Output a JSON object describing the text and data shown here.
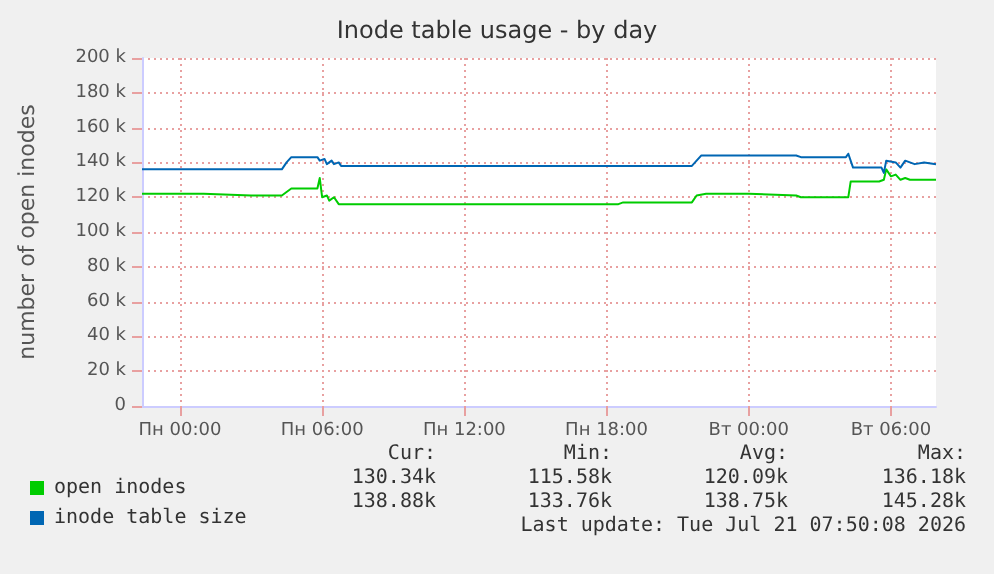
{
  "chart_data": {
    "type": "line",
    "title": "Inode table usage - by day",
    "ylabel": "number of open inodes",
    "xlim": [
      "2026-07-19T22:24",
      "2026-07-21T07:54"
    ],
    "xticks": [
      {
        "value": "2026-07-20T00:00",
        "label": "Пн 00:00"
      },
      {
        "value": "2026-07-20T06:00",
        "label": "Пн 06:00"
      },
      {
        "value": "2026-07-20T12:00",
        "label": "Пн 12:00"
      },
      {
        "value": "2026-07-20T18:00",
        "label": "Пн 18:00"
      },
      {
        "value": "2026-07-21T00:00",
        "label": "Вт 00:00"
      },
      {
        "value": "2026-07-21T06:00",
        "label": "Вт 06:00"
      }
    ],
    "ylim": [
      0,
      200000
    ],
    "yticks": [
      0,
      {
        "value": 20000,
        "label": "20 k"
      },
      {
        "value": 40000,
        "label": "40 k"
      },
      {
        "value": 60000,
        "label": "60 k"
      },
      {
        "value": 80000,
        "label": "80 k"
      },
      {
        "value": 100000,
        "label": "100 k"
      },
      {
        "value": 120000,
        "label": "120 k"
      },
      {
        "value": 140000,
        "label": "140 k"
      },
      {
        "value": 160000,
        "label": "160 k"
      },
      {
        "value": 180000,
        "label": "180 k"
      },
      {
        "value": 200000,
        "label": "200 k"
      }
    ],
    "grid": true,
    "legend": "bottom left",
    "marker": "none",
    "line_style": "solid",
    "series": [
      {
        "name": "open inodes",
        "color": "#00cc00",
        "x": [
          "2026-07-19T22:24",
          "2026-07-20T01:00",
          "2026-07-20T03:00",
          "2026-07-20T04:18",
          "2026-07-20T04:30",
          "2026-07-20T04:42",
          "2026-07-20T05:48",
          "2026-07-20T05:54",
          "2026-07-20T06:00",
          "2026-07-20T06:12",
          "2026-07-20T06:18",
          "2026-07-20T06:30",
          "2026-07-20T06:42",
          "2026-07-20T07:00",
          "2026-07-20T12:00",
          "2026-07-20T18:30",
          "2026-07-20T18:42",
          "2026-07-20T21:36",
          "2026-07-20T21:48",
          "2026-07-20T22:12",
          "2026-07-21T00:00",
          "2026-07-21T02:00",
          "2026-07-21T02:12",
          "2026-07-21T04:12",
          "2026-07-21T04:18",
          "2026-07-21T05:30",
          "2026-07-21T05:42",
          "2026-07-21T05:48",
          "2026-07-21T06:00",
          "2026-07-21T06:12",
          "2026-07-21T06:24",
          "2026-07-21T06:36",
          "2026-07-21T06:48",
          "2026-07-21T07:54"
        ],
        "values": [
          122000,
          122000,
          121000,
          121000,
          123000,
          125000,
          125000,
          131000,
          120000,
          121000,
          118000,
          120000,
          116000,
          116000,
          116000,
          116000,
          117000,
          117000,
          121000,
          122000,
          122000,
          121000,
          120000,
          120000,
          129000,
          129000,
          130000,
          136000,
          132000,
          133000,
          130000,
          131000,
          130000,
          130000
        ]
      },
      {
        "name": "inode table size",
        "color": "#0066b3",
        "x": [
          "2026-07-19T22:24",
          "2026-07-20T04:18",
          "2026-07-20T04:30",
          "2026-07-20T04:42",
          "2026-07-20T05:48",
          "2026-07-20T05:54",
          "2026-07-20T06:06",
          "2026-07-20T06:12",
          "2026-07-20T06:24",
          "2026-07-20T06:30",
          "2026-07-20T06:42",
          "2026-07-20T06:48",
          "2026-07-20T12:00",
          "2026-07-20T18:00",
          "2026-07-20T21:36",
          "2026-07-20T21:48",
          "2026-07-20T22:00",
          "2026-07-21T02:00",
          "2026-07-21T02:12",
          "2026-07-21T04:06",
          "2026-07-21T04:12",
          "2026-07-21T04:24",
          "2026-07-21T05:36",
          "2026-07-21T05:42",
          "2026-07-21T05:48",
          "2026-07-21T06:12",
          "2026-07-21T06:24",
          "2026-07-21T06:36",
          "2026-07-21T07:00",
          "2026-07-21T07:24",
          "2026-07-21T07:54"
        ],
        "values": [
          136000,
          136000,
          140000,
          143000,
          143000,
          141000,
          142000,
          139000,
          141000,
          139000,
          140000,
          138000,
          138000,
          138000,
          138000,
          141000,
          144000,
          144000,
          143000,
          143000,
          145000,
          137000,
          137000,
          134000,
          141000,
          140000,
          137000,
          141000,
          139000,
          140000,
          139000
        ]
      }
    ],
    "annotations": [
      "Cur:",
      "Min:",
      "Avg:",
      "Max:",
      "130.34k",
      "115.58k",
      "120.09k",
      "136.18k",
      "138.88k",
      "133.76k",
      "138.75k",
      "145.28k",
      "Last update: Tue Jul 21 07:50:08 2026"
    ]
  }
}
